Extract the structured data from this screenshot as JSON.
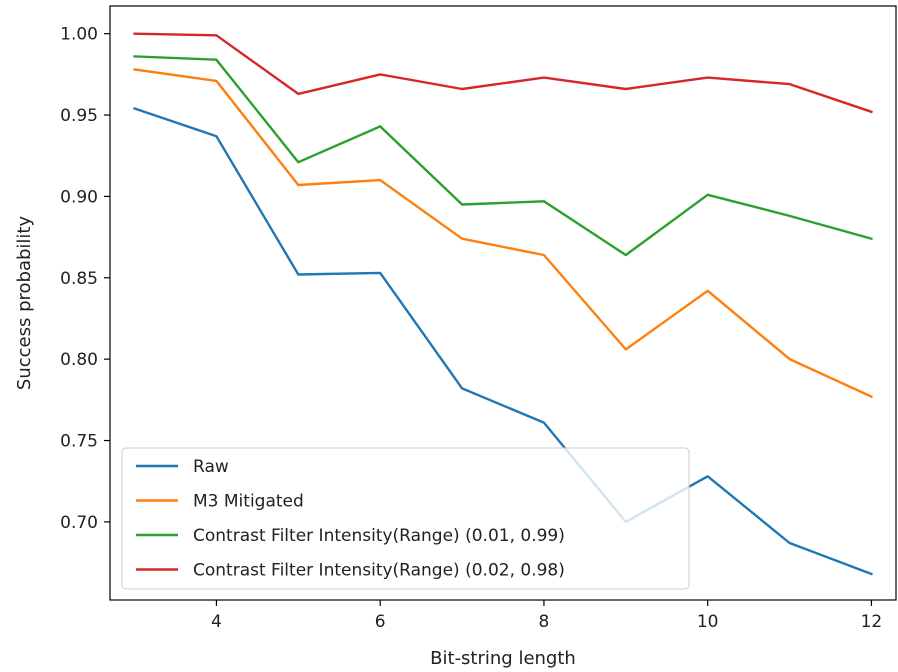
{
  "chart_data": {
    "type": "line",
    "xlabel": "Bit-string length",
    "ylabel": "Success probability",
    "xlim": [
      2.7,
      12.3
    ],
    "ylim": [
      0.652,
      1.017
    ],
    "x_ticks": [
      4,
      6,
      8,
      10,
      12
    ],
    "y_ticks": [
      0.7,
      0.75,
      0.8,
      0.85,
      0.9,
      0.95,
      1.0
    ],
    "x_tick_labels": [
      "4",
      "6",
      "8",
      "10",
      "12"
    ],
    "y_tick_labels": [
      "0.70",
      "0.75",
      "0.80",
      "0.85",
      "0.90",
      "0.95",
      "1.00"
    ],
    "grid": false,
    "legend_position": "lower-left",
    "x": [
      3,
      4,
      5,
      6,
      7,
      8,
      9,
      10,
      11,
      12
    ],
    "series": [
      {
        "name": "Raw",
        "color": "#1f77b4",
        "values": [
          0.954,
          0.937,
          0.852,
          0.853,
          0.782,
          0.761,
          0.7,
          0.728,
          0.687,
          0.668
        ]
      },
      {
        "name": "M3 Mitigated",
        "color": "#ff7f0e",
        "values": [
          0.978,
          0.971,
          0.907,
          0.91,
          0.874,
          0.864,
          0.806,
          0.842,
          0.8,
          0.777
        ]
      },
      {
        "name": "Contrast Filter Intensity(Range) (0.01, 0.99)",
        "color": "#2ca02c",
        "values": [
          0.986,
          0.984,
          0.921,
          0.943,
          0.895,
          0.897,
          0.864,
          0.901,
          0.888,
          0.874
        ]
      },
      {
        "name": "Contrast Filter Intensity(Range) (0.02, 0.98)",
        "color": "#d62728",
        "values": [
          1.0,
          0.999,
          0.963,
          0.975,
          0.966,
          0.973,
          0.966,
          0.973,
          0.969,
          0.952
        ]
      }
    ]
  }
}
